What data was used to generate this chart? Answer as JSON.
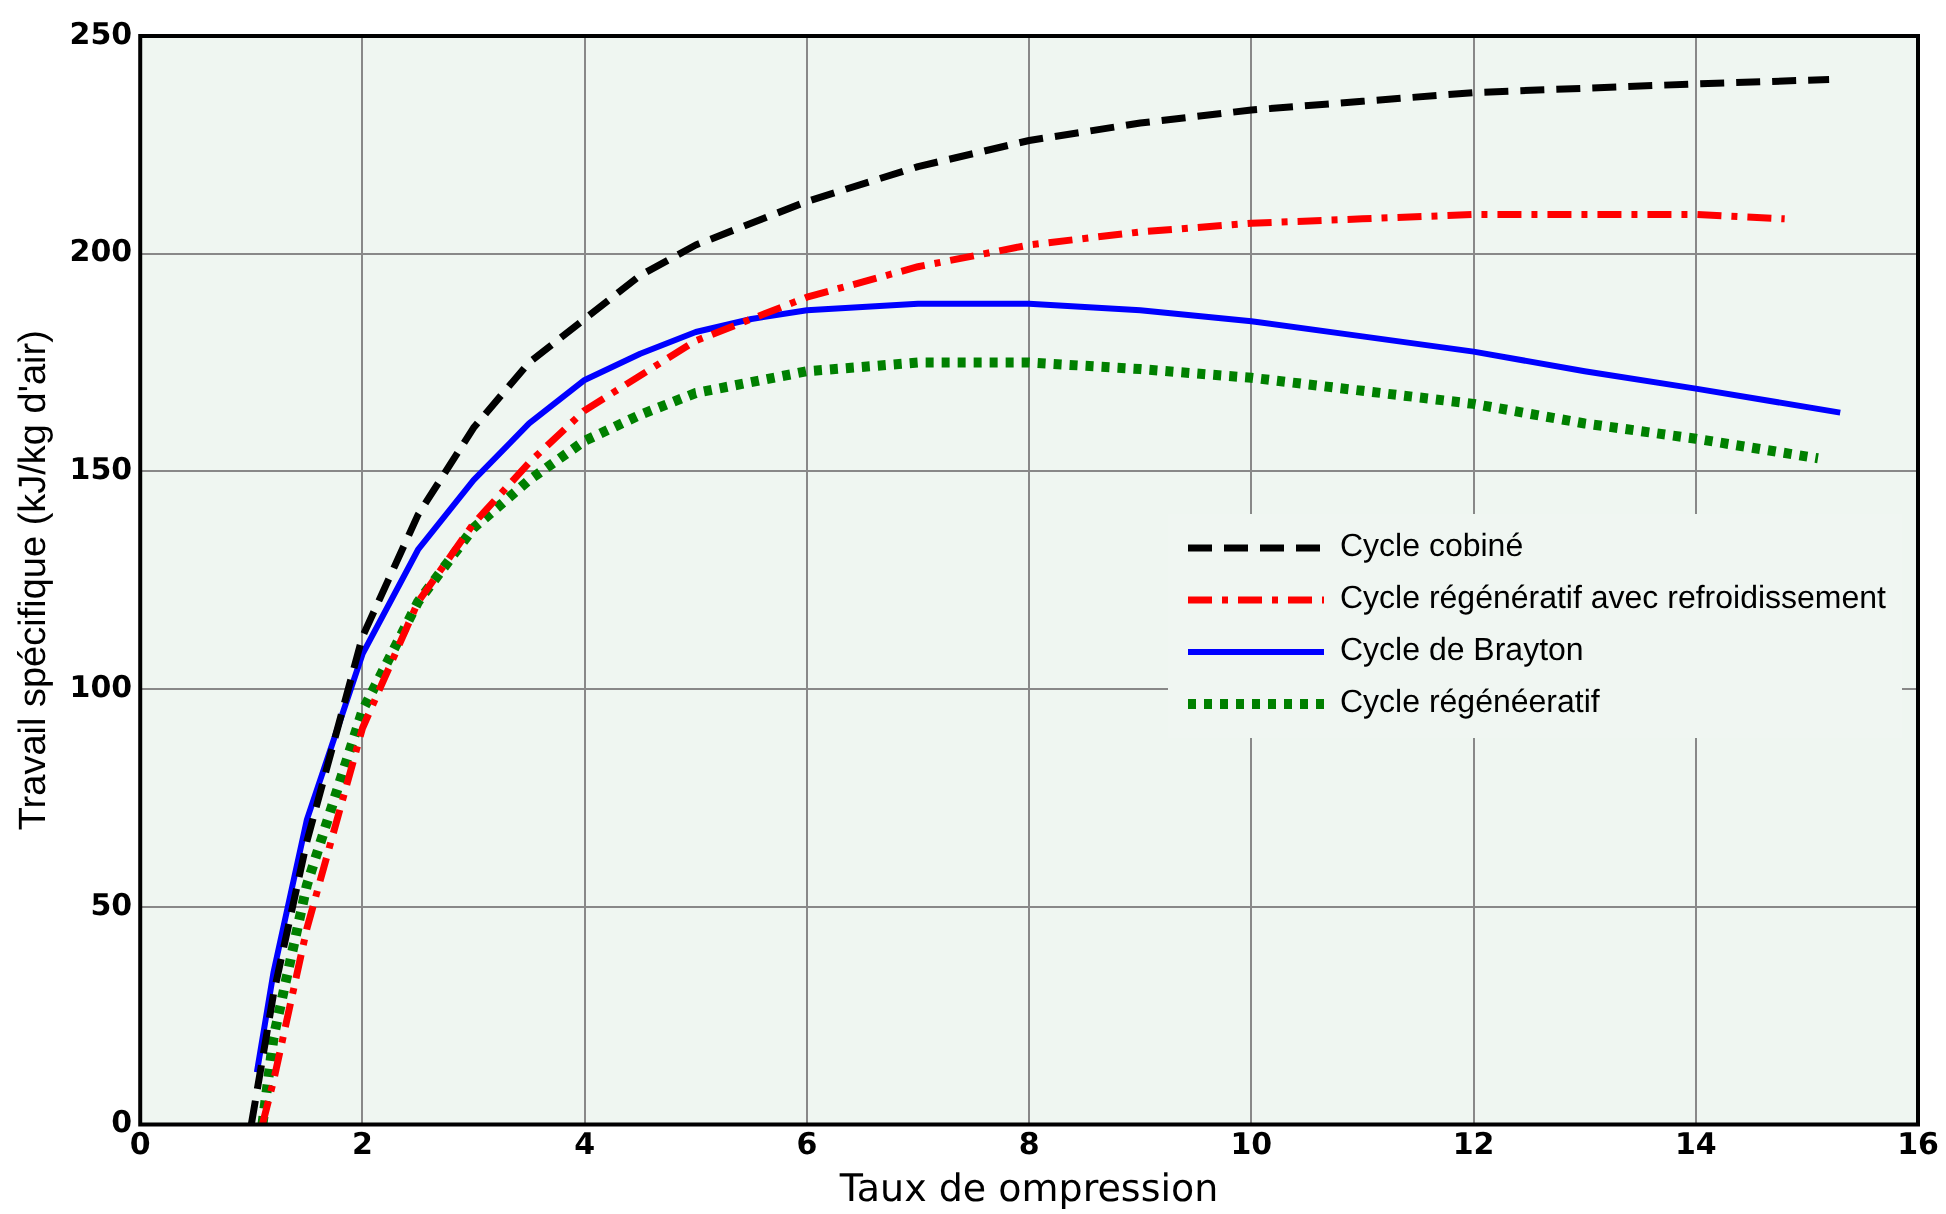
{
  "chart_data": {
    "type": "line",
    "xlabel": "Taux de ompression",
    "ylabel": "Travail spécifique (kJ/kg d'air)",
    "xlim": [
      0,
      16
    ],
    "xticks": [
      0,
      2,
      4,
      6,
      8,
      10,
      12,
      14,
      16
    ],
    "ylim": [
      0,
      250
    ],
    "yticks": [
      0,
      50,
      100,
      150,
      200,
      250
    ],
    "grid": true,
    "legend": "right",
    "marker": "none",
    "series": [
      {
        "name": "Cycle cobiné",
        "color": "#000000",
        "line_style": "dashed",
        "x": [
          1,
          1.2,
          1.5,
          2,
          2.5,
          3,
          3.5,
          4,
          4.5,
          5,
          6,
          7,
          8,
          9,
          10,
          11,
          12,
          13,
          14,
          15.2
        ],
        "values": [
          0,
          30,
          65,
          112,
          140,
          160,
          175,
          185,
          195,
          202,
          212,
          220,
          226,
          230,
          233,
          235,
          237,
          238,
          239,
          240
        ]
      },
      {
        "name": "Cycle régénératif avec refroidissement",
        "color": "#ff0000",
        "line_style": "dashdot",
        "x": [
          1.1,
          1.2,
          1.5,
          2,
          2.5,
          3,
          3.5,
          4,
          5,
          6,
          7,
          8,
          9,
          10,
          11,
          12,
          13,
          14,
          14.8
        ],
        "values": [
          0,
          10,
          45,
          91,
          120,
          138,
          152,
          164,
          180,
          190,
          197,
          202,
          205,
          207,
          208,
          209,
          209,
          209,
          208
        ]
      },
      {
        "name": "Cycle de Brayton",
        "color": "#0000ff",
        "line_style": "solid",
        "x": [
          1.05,
          1.2,
          1.5,
          2,
          2.5,
          3,
          3.5,
          4,
          4.5,
          5,
          5.5,
          6,
          7,
          8,
          9,
          10,
          11,
          12,
          13,
          14,
          15.3
        ],
        "values": [
          12,
          35,
          70,
          108,
          132,
          148,
          161,
          171,
          177,
          182,
          185,
          187,
          188.5,
          188.5,
          187,
          184.5,
          181,
          177.5,
          173,
          169,
          163.5
        ]
      },
      {
        "name": "Cycle régénéeratif",
        "color": "#008000",
        "line_style": "dotted",
        "x": [
          1.1,
          1.2,
          1.5,
          2,
          2.5,
          3,
          3.5,
          4,
          4.5,
          5,
          6,
          7,
          8,
          9,
          10,
          11,
          12,
          13,
          14,
          15.1
        ],
        "values": [
          0,
          20,
          55,
          95,
          120,
          137,
          148,
          157,
          163,
          168,
          173,
          175,
          175,
          173.5,
          171.5,
          168.5,
          165.5,
          161,
          157.5,
          153
        ]
      }
    ]
  }
}
